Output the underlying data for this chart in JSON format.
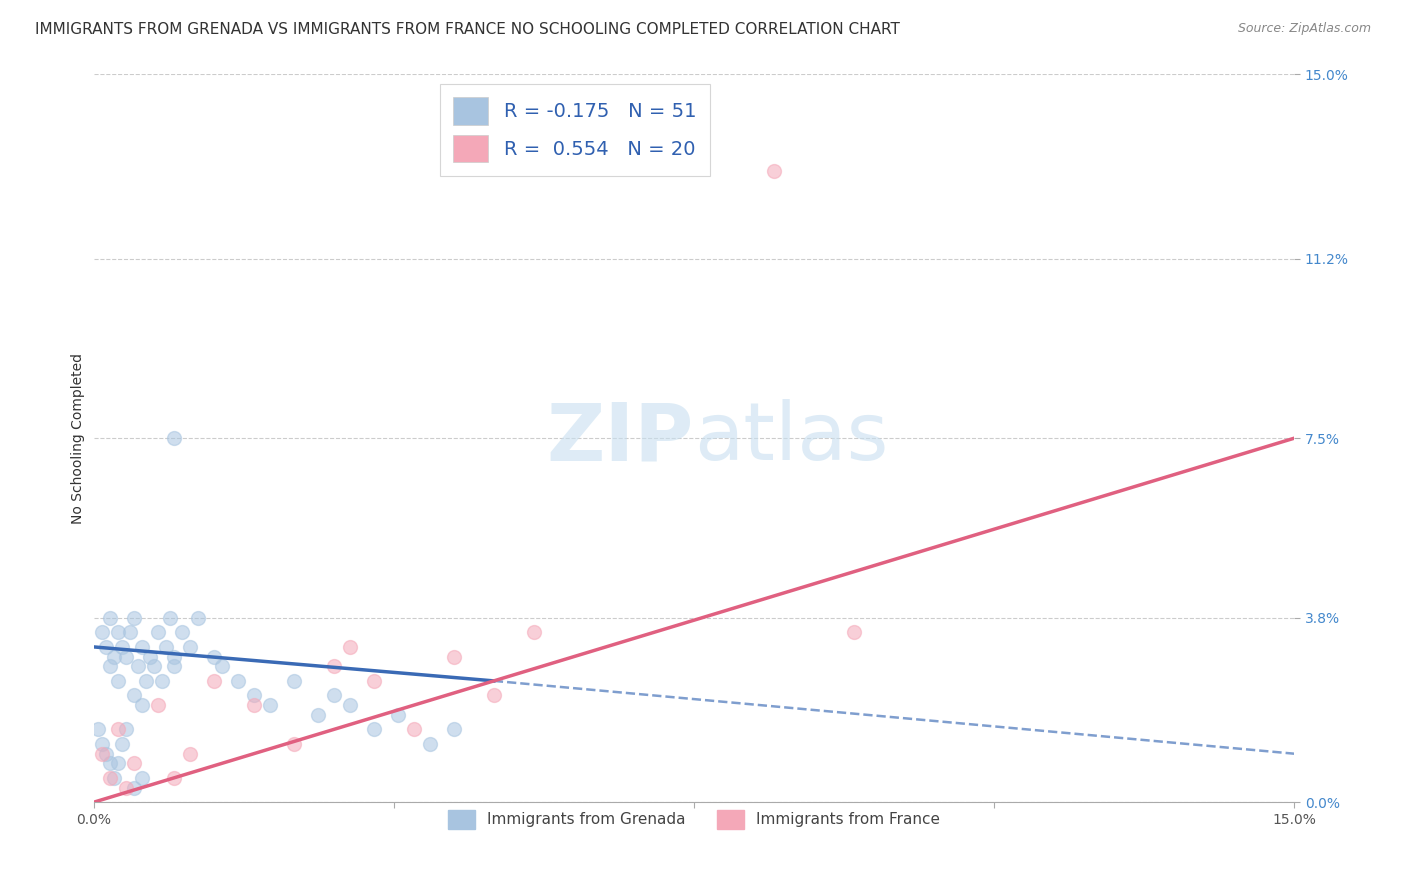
{
  "title": "IMMIGRANTS FROM GRENADA VS IMMIGRANTS FROM FRANCE NO SCHOOLING COMPLETED CORRELATION CHART",
  "source": "Source: ZipAtlas.com",
  "ylabel": "No Schooling Completed",
  "ytick_vals": [
    0.0,
    3.8,
    7.5,
    11.2,
    15.0
  ],
  "xlim": [
    0.0,
    15.0
  ],
  "ylim": [
    0.0,
    15.0
  ],
  "legend1_label": "R = -0.175   N = 51",
  "legend2_label": "R =  0.554   N = 20",
  "legend_bottom1": "Immigrants from Grenada",
  "legend_bottom2": "Immigrants from France",
  "grenada_color": "#a8c4e0",
  "france_color": "#f4a8b8",
  "grenada_line_color": "#3a6ab5",
  "france_line_color": "#e06080",
  "background_color": "#ffffff",
  "title_fontsize": 11,
  "axis_label_fontsize": 10,
  "tick_fontsize": 10,
  "dot_size": 100,
  "dot_alpha": 0.55,
  "grenada_x": [
    0.1,
    0.15,
    0.2,
    0.2,
    0.25,
    0.3,
    0.3,
    0.35,
    0.4,
    0.45,
    0.5,
    0.5,
    0.55,
    0.6,
    0.6,
    0.65,
    0.7,
    0.75,
    0.8,
    0.85,
    0.9,
    0.95,
    1.0,
    1.0,
    1.1,
    1.2,
    1.3,
    1.5,
    1.6,
    1.8,
    2.0,
    2.2,
    2.5,
    2.8,
    3.0,
    3.2,
    3.5,
    3.8,
    4.2,
    4.5,
    0.05,
    0.1,
    0.15,
    0.2,
    0.25,
    0.3,
    0.35,
    0.4,
    0.5,
    0.6,
    1.0
  ],
  "grenada_y": [
    3.5,
    3.2,
    3.8,
    2.8,
    3.0,
    3.5,
    2.5,
    3.2,
    3.0,
    3.5,
    3.8,
    2.2,
    2.8,
    3.2,
    2.0,
    2.5,
    3.0,
    2.8,
    3.5,
    2.5,
    3.2,
    3.8,
    3.0,
    2.8,
    3.5,
    3.2,
    3.8,
    3.0,
    2.8,
    2.5,
    2.2,
    2.0,
    2.5,
    1.8,
    2.2,
    2.0,
    1.5,
    1.8,
    1.2,
    1.5,
    1.5,
    1.2,
    1.0,
    0.8,
    0.5,
    0.8,
    1.2,
    1.5,
    0.3,
    0.5,
    7.5
  ],
  "france_x": [
    0.1,
    0.2,
    0.3,
    0.5,
    0.8,
    1.0,
    1.2,
    1.5,
    2.0,
    2.5,
    3.0,
    3.2,
    3.5,
    4.0,
    4.5,
    5.0,
    5.5,
    9.5,
    8.5,
    0.4
  ],
  "france_y": [
    1.0,
    0.5,
    1.5,
    0.8,
    2.0,
    0.5,
    1.0,
    2.5,
    2.0,
    1.2,
    2.8,
    3.2,
    2.5,
    1.5,
    3.0,
    2.2,
    3.5,
    3.5,
    13.0,
    0.3
  ],
  "grenada_line_x0": 0.0,
  "grenada_line_y0": 3.2,
  "grenada_line_x1": 5.0,
  "grenada_line_y1": 2.5,
  "grenada_dash_x0": 5.0,
  "grenada_dash_y0": 2.5,
  "grenada_dash_x1": 15.0,
  "grenada_dash_y1": 1.0,
  "france_line_x0": 0.0,
  "france_line_y0": 0.0,
  "france_line_x1": 15.0,
  "france_line_y1": 7.5
}
